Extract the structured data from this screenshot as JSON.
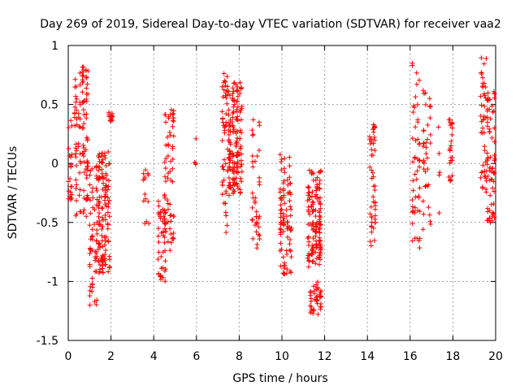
{
  "chart_data": {
    "type": "scatter",
    "title": "Day 269 of 2019, Sidereal Day-to-day VTEC variation (SDTVAR) for receiver vaa2",
    "xlabel": "GPS time / hours",
    "ylabel": "SDTVAR / TECUs",
    "xlim": [
      0,
      20
    ],
    "ylim": [
      -1.5,
      1
    ],
    "grid": true,
    "marker": "+",
    "series_color": "#ff0000",
    "xticks": [
      0,
      2,
      4,
      6,
      8,
      10,
      12,
      14,
      16,
      18,
      20
    ],
    "xtick_labels": [
      "0",
      "2",
      "4",
      "6",
      "8",
      "10",
      "12",
      "14",
      "16",
      "18",
      "20"
    ],
    "yticks": [
      1,
      0.5,
      0,
      -0.5,
      -1,
      -1.5
    ],
    "ytick_labels": [
      "1",
      "0.5",
      "0",
      "-0.5",
      "-1",
      "-1.5"
    ],
    "clusters": [
      {
        "x": [
          0.0,
          0.2
        ],
        "y": [
          -0.35,
          0.48
        ],
        "n": 22
      },
      {
        "x": [
          0.3,
          1.0
        ],
        "y": [
          -0.45,
          0.82
        ],
        "n": 110
      },
      {
        "x": [
          1.0,
          1.4
        ],
        "y": [
          -1.2,
          0.0
        ],
        "n": 60
      },
      {
        "x": [
          1.4,
          2.0
        ],
        "y": [
          -0.95,
          0.1
        ],
        "n": 130
      },
      {
        "x": [
          1.9,
          2.1
        ],
        "y": [
          0.35,
          0.45
        ],
        "n": 14
      },
      {
        "x": [
          3.5,
          3.8
        ],
        "y": [
          -0.55,
          -0.05
        ],
        "n": 14
      },
      {
        "x": [
          4.2,
          4.6
        ],
        "y": [
          -1.05,
          -0.25
        ],
        "n": 40
      },
      {
        "x": [
          4.5,
          5.0
        ],
        "y": [
          -0.75,
          0.48
        ],
        "n": 70
      },
      {
        "x": [
          5.9,
          6.1
        ],
        "y": [
          -0.05,
          0.22
        ],
        "n": 4
      },
      {
        "x": [
          7.2,
          7.5
        ],
        "y": [
          -0.62,
          0.78
        ],
        "n": 50
      },
      {
        "x": [
          7.5,
          8.2
        ],
        "y": [
          -0.28,
          0.7
        ],
        "n": 150
      },
      {
        "x": [
          8.6,
          9.0
        ],
        "y": [
          -0.72,
          0.42
        ],
        "n": 40
      },
      {
        "x": [
          9.9,
          10.5
        ],
        "y": [
          -0.95,
          0.08
        ],
        "n": 90
      },
      {
        "x": [
          11.2,
          11.9
        ],
        "y": [
          -0.88,
          -0.05
        ],
        "n": 140
      },
      {
        "x": [
          11.3,
          11.9
        ],
        "y": [
          -1.28,
          -1.0
        ],
        "n": 40
      },
      {
        "x": [
          14.1,
          14.4
        ],
        "y": [
          -0.78,
          0.35
        ],
        "n": 50
      },
      {
        "x": [
          16.1,
          16.5
        ],
        "y": [
          -0.72,
          0.85
        ],
        "n": 50
      },
      {
        "x": [
          16.6,
          17.0
        ],
        "y": [
          -0.62,
          0.62
        ],
        "n": 40
      },
      {
        "x": [
          17.3,
          17.4
        ],
        "y": [
          -0.58,
          0.48
        ],
        "n": 5
      },
      {
        "x": [
          17.8,
          18.0
        ],
        "y": [
          -0.15,
          0.38
        ],
        "n": 25
      },
      {
        "x": [
          19.3,
          19.6
        ],
        "y": [
          -0.28,
          0.92
        ],
        "n": 45
      },
      {
        "x": [
          19.6,
          20.0
        ],
        "y": [
          -0.5,
          0.62
        ],
        "n": 70
      }
    ]
  }
}
